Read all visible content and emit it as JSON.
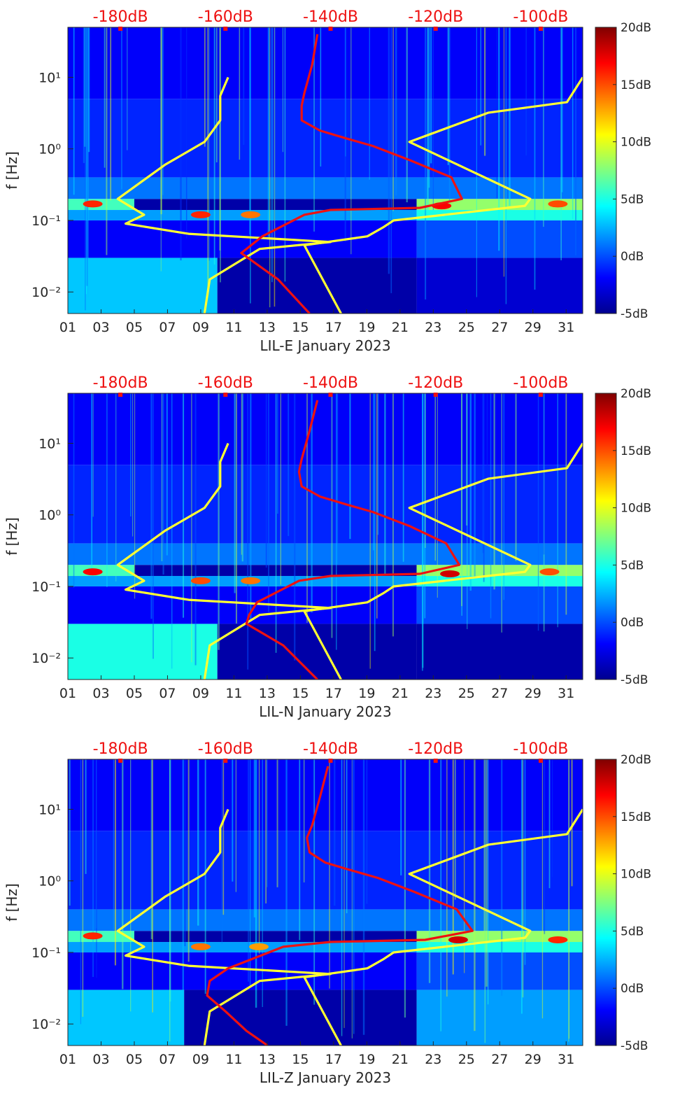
{
  "figure": {
    "ylabel": "f [Hz]",
    "top_axis_ticks": [
      "-180dB",
      "-160dB",
      "-140dB",
      "-120dB",
      "-100dB"
    ],
    "colorbar_ticks": [
      "20dB",
      "15dB",
      "10dB",
      "5dB",
      "0dB",
      "-5dB"
    ],
    "day_ticks": [
      "01",
      "03",
      "05",
      "07",
      "09",
      "11",
      "13",
      "15",
      "17",
      "19",
      "21",
      "23",
      "25",
      "27",
      "29",
      "31"
    ],
    "colors": {
      "noise_model": "#ffff33",
      "noise_mean": "#ee1111",
      "top_axis_text": "#ee1111",
      "axis": "#262626"
    }
  },
  "chart_data": [
    {
      "type": "heatmap",
      "title": "",
      "xlabel": "LIL-E January 2023",
      "ylabel": "f [Hz]",
      "x_unit": "day of January 2023",
      "xlim": [
        1,
        32
      ],
      "ylim_hz": [
        0.005,
        50
      ],
      "y_scale": "log",
      "y_ticks": [
        0.01,
        0.1,
        1,
        10
      ],
      "y_tick_labels": [
        "10⁻²",
        "10⁻¹",
        "10⁰",
        "10¹"
      ],
      "top_axis": {
        "label_unit": "dB",
        "ticks_db": [
          -180,
          -160,
          -140,
          -120,
          -100
        ],
        "range_db": [
          -190,
          -92
        ]
      },
      "color_scale_db": [
        -5,
        20
      ],
      "colormap": "jet",
      "grid": false,
      "bands": [
        {
          "f_lo": 0.005,
          "f_hi": 0.03,
          "segments": [
            [
              1,
              10,
              3
            ],
            [
              10,
              22,
              -4
            ],
            [
              22,
              32,
              -3
            ]
          ]
        },
        {
          "f_lo": 0.03,
          "f_hi": 0.1,
          "segments": [
            [
              1,
              22,
              -2
            ],
            [
              22,
              32,
              0
            ]
          ]
        },
        {
          "f_lo": 0.1,
          "f_hi": 0.14,
          "segments": [
            [
              1,
              22,
              2
            ],
            [
              22,
              32,
              5
            ]
          ]
        },
        {
          "f_lo": 0.14,
          "f_hi": 0.2,
          "segments": [
            [
              1,
              5,
              6
            ],
            [
              5,
              22,
              -4
            ],
            [
              22,
              32,
              8
            ]
          ]
        },
        {
          "f_lo": 0.2,
          "f_hi": 0.4,
          "segments": [
            [
              1,
              32,
              1
            ]
          ]
        },
        {
          "f_lo": 0.4,
          "f_hi": 5,
          "segments": [
            [
              1,
              32,
              -1
            ]
          ]
        },
        {
          "f_lo": 5,
          "f_hi": 50,
          "segments": [
            [
              1,
              32,
              -2
            ]
          ]
        }
      ],
      "hotspots": [
        {
          "day": 2.5,
          "f": 0.17,
          "db": 16
        },
        {
          "day": 9.0,
          "f": 0.12,
          "db": 16
        },
        {
          "day": 12.0,
          "f": 0.12,
          "db": 14
        },
        {
          "day": 23.5,
          "f": 0.16,
          "db": 17
        },
        {
          "day": 30.5,
          "f": 0.17,
          "db": 15
        }
      ],
      "series": [
        {
          "role": "low-noise-model",
          "db": [
            -159.5,
            -161,
            -161,
            -164,
            -171.5,
            -180.5,
            -175.5,
            -179,
            -167,
            -140,
            -153.5,
            -163,
            -164
          ],
          "f_hz": [
            10,
            5.5,
            2.5,
            1.25,
            0.6,
            0.2,
            0.12,
            0.09,
            0.065,
            0.05,
            0.04,
            0.015,
            0.005
          ]
        },
        {
          "role": "high-noise-model",
          "db": [
            -92,
            -95,
            -110,
            -125,
            -102,
            -103,
            -128,
            -130,
            -133,
            -145,
            -138
          ],
          "f_hz": [
            10,
            4.5,
            3.2,
            1.25,
            0.2,
            0.16,
            0.1,
            0.08,
            0.06,
            0.045,
            0.005
          ]
        },
        {
          "role": "noise-mean",
          "db": [
            -142.5,
            -143.5,
            -145,
            -145.5,
            -145.5,
            -142,
            -137,
            -132,
            -125,
            -117,
            -115,
            -123,
            -140,
            -145,
            -153,
            -156,
            -157,
            -150,
            -144
          ],
          "f_hz": [
            40,
            15,
            6,
            4,
            2.5,
            1.8,
            1.4,
            1.1,
            0.7,
            0.4,
            0.2,
            0.15,
            0.14,
            0.12,
            0.06,
            0.04,
            0.035,
            0.015,
            0.005
          ]
        }
      ]
    },
    {
      "type": "heatmap",
      "title": "",
      "xlabel": "LIL-N January 2023",
      "ylabel": "f [Hz]",
      "x_unit": "day of January 2023",
      "xlim": [
        1,
        32
      ],
      "ylim_hz": [
        0.005,
        50
      ],
      "y_scale": "log",
      "y_ticks": [
        0.01,
        0.1,
        1,
        10
      ],
      "y_tick_labels": [
        "10⁻²",
        "10⁻¹",
        "10⁰",
        "10¹"
      ],
      "top_axis": {
        "label_unit": "dB",
        "ticks_db": [
          -180,
          -160,
          -140,
          -120,
          -100
        ],
        "range_db": [
          -190,
          -92
        ]
      },
      "color_scale_db": [
        -5,
        20
      ],
      "colormap": "jet",
      "grid": false,
      "bands": [
        {
          "f_lo": 0.005,
          "f_hi": 0.03,
          "segments": [
            [
              1,
              10,
              5
            ],
            [
              10,
              22,
              -4
            ],
            [
              22,
              32,
              -4
            ]
          ]
        },
        {
          "f_lo": 0.03,
          "f_hi": 0.1,
          "segments": [
            [
              1,
              22,
              -2
            ],
            [
              22,
              32,
              0
            ]
          ]
        },
        {
          "f_lo": 0.1,
          "f_hi": 0.14,
          "segments": [
            [
              1,
              22,
              2
            ],
            [
              22,
              32,
              5
            ]
          ]
        },
        {
          "f_lo": 0.14,
          "f_hi": 0.2,
          "segments": [
            [
              1,
              5,
              6
            ],
            [
              5,
              22,
              -4
            ],
            [
              22,
              32,
              8
            ]
          ]
        },
        {
          "f_lo": 0.2,
          "f_hi": 0.4,
          "segments": [
            [
              1,
              32,
              1
            ]
          ]
        },
        {
          "f_lo": 0.4,
          "f_hi": 5,
          "segments": [
            [
              1,
              32,
              -1
            ]
          ]
        },
        {
          "f_lo": 5,
          "f_hi": 50,
          "segments": [
            [
              1,
              32,
              -2
            ]
          ]
        }
      ],
      "hotspots": [
        {
          "day": 2.5,
          "f": 0.16,
          "db": 17
        },
        {
          "day": 9.0,
          "f": 0.12,
          "db": 15
        },
        {
          "day": 12.0,
          "f": 0.12,
          "db": 14
        },
        {
          "day": 24.0,
          "f": 0.15,
          "db": 18
        },
        {
          "day": 30.0,
          "f": 0.16,
          "db": 15
        }
      ],
      "series": [
        {
          "role": "low-noise-model",
          "db": [
            -159.5,
            -161,
            -161,
            -164,
            -171.5,
            -180.5,
            -175.5,
            -179,
            -167,
            -140,
            -153.5,
            -163,
            -164
          ],
          "f_hz": [
            10,
            5.5,
            2.5,
            1.25,
            0.6,
            0.2,
            0.12,
            0.09,
            0.065,
            0.05,
            0.04,
            0.015,
            0.005
          ]
        },
        {
          "role": "high-noise-model",
          "db": [
            -92,
            -95,
            -110,
            -125,
            -102,
            -103,
            -128,
            -130,
            -133,
            -145,
            -138
          ],
          "f_hz": [
            10,
            4.5,
            3.2,
            1.25,
            0.2,
            0.16,
            0.1,
            0.08,
            0.06,
            0.045,
            0.005
          ]
        },
        {
          "role": "noise-mean",
          "db": [
            -142.5,
            -144,
            -145.5,
            -146,
            -145.5,
            -142,
            -137,
            -132,
            -125,
            -118,
            -115.5,
            -123,
            -140,
            -146,
            -154,
            -155.5,
            -156,
            -149,
            -142.5
          ],
          "f_hz": [
            40,
            15,
            6,
            4,
            2.5,
            1.8,
            1.4,
            1.1,
            0.7,
            0.4,
            0.2,
            0.15,
            0.14,
            0.12,
            0.06,
            0.04,
            0.03,
            0.015,
            0.005
          ]
        }
      ]
    },
    {
      "type": "heatmap",
      "title": "",
      "xlabel": "LIL-Z January 2023",
      "ylabel": "f [Hz]",
      "x_unit": "day of January 2023",
      "xlim": [
        1,
        32
      ],
      "ylim_hz": [
        0.005,
        50
      ],
      "y_scale": "log",
      "y_ticks": [
        0.01,
        0.1,
        1,
        10
      ],
      "y_tick_labels": [
        "10⁻²",
        "10⁻¹",
        "10⁰",
        "10¹"
      ],
      "top_axis": {
        "label_unit": "dB",
        "ticks_db": [
          -180,
          -160,
          -140,
          -120,
          -100
        ],
        "range_db": [
          -190,
          -92
        ]
      },
      "color_scale_db": [
        -5,
        20
      ],
      "colormap": "jet",
      "grid": false,
      "bands": [
        {
          "f_lo": 0.005,
          "f_hi": 0.03,
          "segments": [
            [
              1,
              8,
              3
            ],
            [
              8,
              22,
              -4
            ],
            [
              22,
              32,
              2
            ]
          ]
        },
        {
          "f_lo": 0.03,
          "f_hi": 0.1,
          "segments": [
            [
              1,
              22,
              -2
            ],
            [
              22,
              32,
              0
            ]
          ]
        },
        {
          "f_lo": 0.1,
          "f_hi": 0.14,
          "segments": [
            [
              1,
              22,
              2
            ],
            [
              22,
              32,
              5
            ]
          ]
        },
        {
          "f_lo": 0.14,
          "f_hi": 0.2,
          "segments": [
            [
              1,
              5,
              6
            ],
            [
              5,
              22,
              -4
            ],
            [
              22,
              32,
              8
            ]
          ]
        },
        {
          "f_lo": 0.2,
          "f_hi": 0.4,
          "segments": [
            [
              1,
              32,
              1
            ]
          ]
        },
        {
          "f_lo": 0.4,
          "f_hi": 5,
          "segments": [
            [
              1,
              32,
              -1
            ]
          ]
        },
        {
          "f_lo": 5,
          "f_hi": 50,
          "segments": [
            [
              1,
              32,
              -2
            ]
          ]
        }
      ],
      "hotspots": [
        {
          "day": 2.5,
          "f": 0.17,
          "db": 16
        },
        {
          "day": 9.0,
          "f": 0.12,
          "db": 14
        },
        {
          "day": 12.5,
          "f": 0.12,
          "db": 13
        },
        {
          "day": 24.5,
          "f": 0.15,
          "db": 18
        },
        {
          "day": 30.5,
          "f": 0.15,
          "db": 16
        }
      ],
      "series": [
        {
          "role": "low-noise-model",
          "db": [
            -159.5,
            -161,
            -161,
            -164,
            -171.5,
            -180.5,
            -175.5,
            -179,
            -167,
            -140,
            -153.5,
            -163,
            -164
          ],
          "f_hz": [
            10,
            5.5,
            2.5,
            1.25,
            0.6,
            0.2,
            0.12,
            0.09,
            0.065,
            0.05,
            0.04,
            0.015,
            0.005
          ]
        },
        {
          "role": "high-noise-model",
          "db": [
            -92,
            -95,
            -110,
            -125,
            -102,
            -103,
            -128,
            -130,
            -133,
            -145,
            -138
          ],
          "f_hz": [
            10,
            4.5,
            3.2,
            1.25,
            0.2,
            0.16,
            0.1,
            0.08,
            0.06,
            0.045,
            0.005
          ]
        },
        {
          "role": "noise-mean",
          "db": [
            -140.5,
            -142,
            -143.5,
            -144.5,
            -144,
            -141,
            -136,
            -131,
            -124,
            -116,
            -113,
            -122,
            -140,
            -149,
            -159.5,
            -163,
            -163.5,
            -160,
            -156,
            -152
          ],
          "f_hz": [
            40,
            15,
            6,
            4,
            2.5,
            1.8,
            1.4,
            1.1,
            0.7,
            0.4,
            0.2,
            0.15,
            0.14,
            0.12,
            0.06,
            0.04,
            0.025,
            0.015,
            0.008,
            0.005
          ]
        }
      ]
    }
  ]
}
